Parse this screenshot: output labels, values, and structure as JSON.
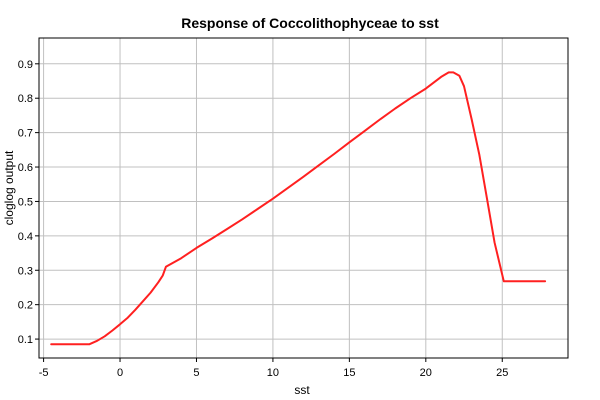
{
  "chart_data": {
    "type": "line",
    "title": "Response of Coccolithophyceae to sst",
    "xlabel": "sst",
    "ylabel": "cloglog output",
    "xlim": [
      -5.3,
      29.3
    ],
    "ylim": [
      0.045,
      0.975
    ],
    "x_ticks": [
      -5,
      0,
      5,
      10,
      15,
      20,
      25
    ],
    "x_tick_labels": [
      "-5",
      "0",
      "5",
      "10",
      "15",
      "20",
      "25"
    ],
    "y_ticks": [
      0.1,
      0.2,
      0.3,
      0.4,
      0.5,
      0.6,
      0.7,
      0.8,
      0.9
    ],
    "y_tick_labels": [
      "0.1",
      "0.2",
      "0.3",
      "0.4",
      "0.5",
      "0.6",
      "0.7",
      "0.8",
      "0.9"
    ],
    "grid": true,
    "legend": "none",
    "series": [
      {
        "color": "#ff2020",
        "x": [
          -4.5,
          -3.0,
          -2.0,
          -1.5,
          -1.0,
          -0.5,
          0.0,
          0.5,
          1.0,
          1.5,
          2.0,
          2.5,
          2.8,
          3.0,
          4.0,
          5.0,
          6.0,
          7.0,
          8.0,
          9.0,
          10.0,
          11.0,
          12.0,
          13.0,
          14.0,
          15.0,
          16.0,
          17.0,
          18.0,
          19.0,
          20.0,
          21.0,
          21.5,
          21.8,
          22.2,
          22.5,
          23.0,
          23.5,
          24.0,
          24.5,
          25.1,
          26.0,
          27.8
        ],
        "y": [
          0.085,
          0.085,
          0.085,
          0.095,
          0.108,
          0.125,
          0.143,
          0.162,
          0.185,
          0.21,
          0.235,
          0.265,
          0.285,
          0.31,
          0.335,
          0.365,
          0.392,
          0.42,
          0.448,
          0.478,
          0.508,
          0.54,
          0.572,
          0.605,
          0.638,
          0.672,
          0.705,
          0.738,
          0.77,
          0.8,
          0.828,
          0.862,
          0.875,
          0.875,
          0.865,
          0.835,
          0.738,
          0.636,
          0.508,
          0.38,
          0.268,
          0.268,
          0.268
        ]
      }
    ]
  }
}
